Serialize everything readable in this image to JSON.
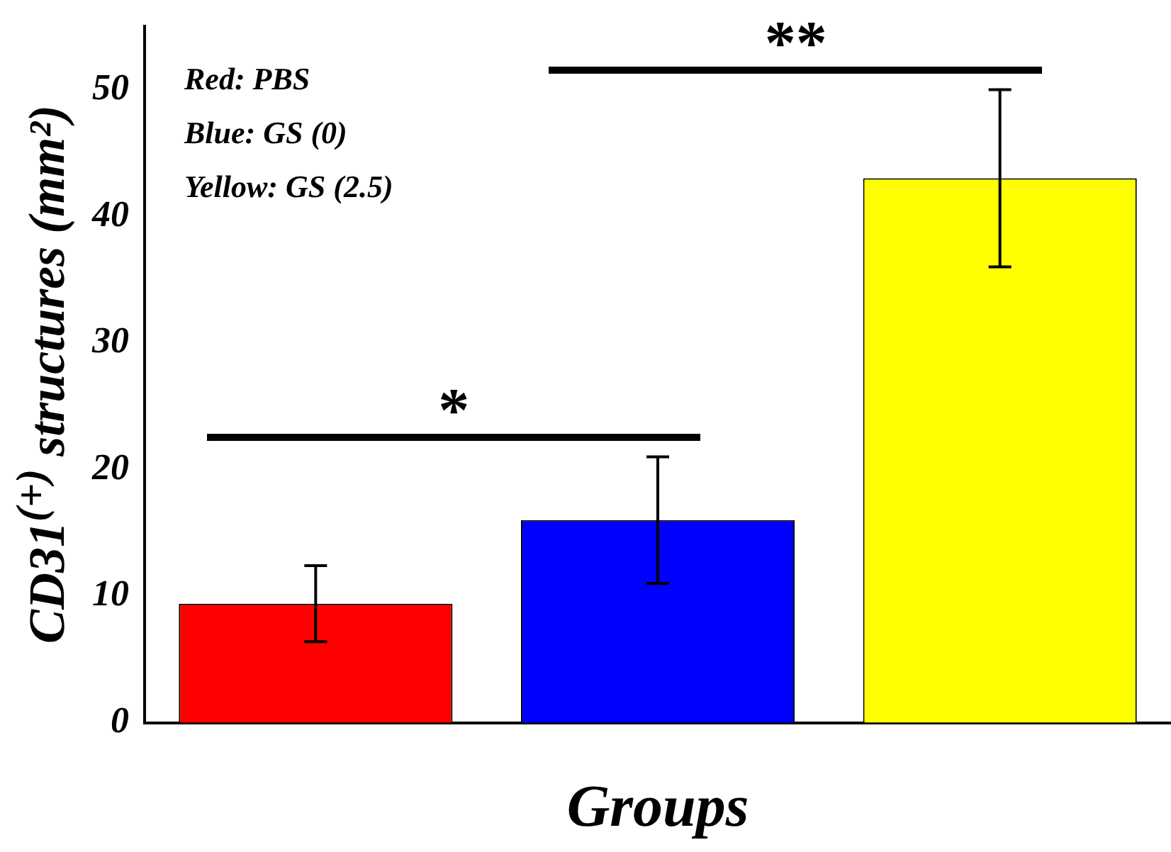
{
  "chart_data": {
    "type": "bar",
    "xlabel": "Groups",
    "ylabel": "CD31$^{(+)}$ structures (mm²)",
    "categories": [
      null,
      null,
      null
    ],
    "values": [
      9.4,
      16.0,
      43.0
    ],
    "colors": [
      "#ff0000",
      "#0000ff",
      "#ffff00"
    ],
    "errors": [
      3,
      5,
      7
    ],
    "ylim": [
      0,
      55
    ],
    "yticks": [
      0,
      10,
      20,
      30,
      40,
      50
    ],
    "grid": false,
    "legend": false,
    "annotations": [
      "Red: PBS",
      "Blue: GS (0)",
      "Yellow: GS (2.5)",
      "*",
      "**"
    ]
  }
}
